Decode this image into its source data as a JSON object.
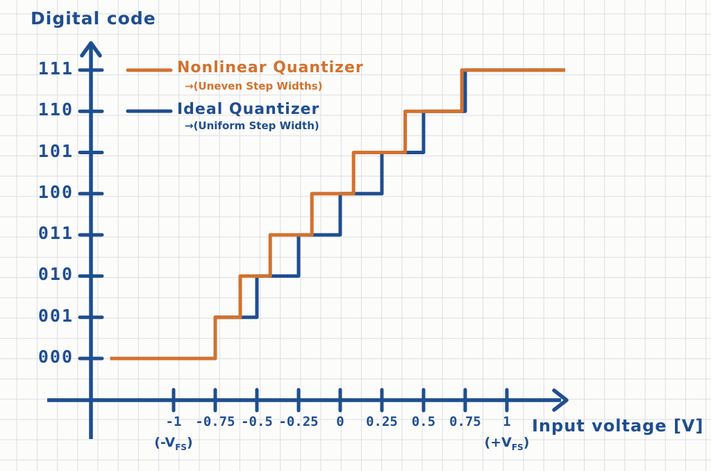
{
  "chart_data": {
    "type": "line",
    "subtype": "staircase-quantizer-transfer-function",
    "title": "Digital code",
    "xlabel": "Input voltage [V]",
    "ylabel": "Digital code",
    "grid": true,
    "legend_position": "top-left-inside",
    "x_tick_values": [
      -1,
      -0.75,
      -0.5,
      -0.25,
      0,
      0.25,
      0.5,
      0.75,
      1
    ],
    "x_tick_labels": [
      "-1",
      "-0.75",
      "-0.5",
      "-0.25",
      "0",
      "0.25",
      "0.5",
      "0.75",
      "1"
    ],
    "y_tick_labels": [
      "000",
      "001",
      "010",
      "011",
      "100",
      "101",
      "110",
      "111"
    ],
    "xlim": [
      -1.38,
      1.35
    ],
    "x_start": -1.38,
    "x_end": 1.35,
    "series": [
      {
        "name": "Nonlinear Quantizer",
        "note_display": "→(Uneven Step Widths)",
        "color": "#D2722E",
        "transitions": [
          -0.75,
          -0.6,
          -0.42,
          -0.17,
          0.08,
          0.39,
          0.73
        ]
      },
      {
        "name": "Ideal Quantizer",
        "note_display": "→(Uniform Step Width)",
        "color": "#1F4E8F",
        "transitions": [
          -0.75,
          -0.5,
          -0.25,
          0,
          0.25,
          0.5,
          0.75
        ]
      }
    ],
    "x_axis_annotations": [
      {
        "at": -1,
        "pre": "(-V",
        "sub": "FS",
        "post": ")"
      },
      {
        "at": 1,
        "pre": "(+V",
        "sub": "FS",
        "post": ")"
      }
    ],
    "colors": {
      "axis": "#1F4E8F",
      "nonlinear_series": "#D2722E",
      "ideal_series": "#1F4E8F",
      "grid": "#DDDDE2",
      "background": "#FCFCFB"
    }
  }
}
